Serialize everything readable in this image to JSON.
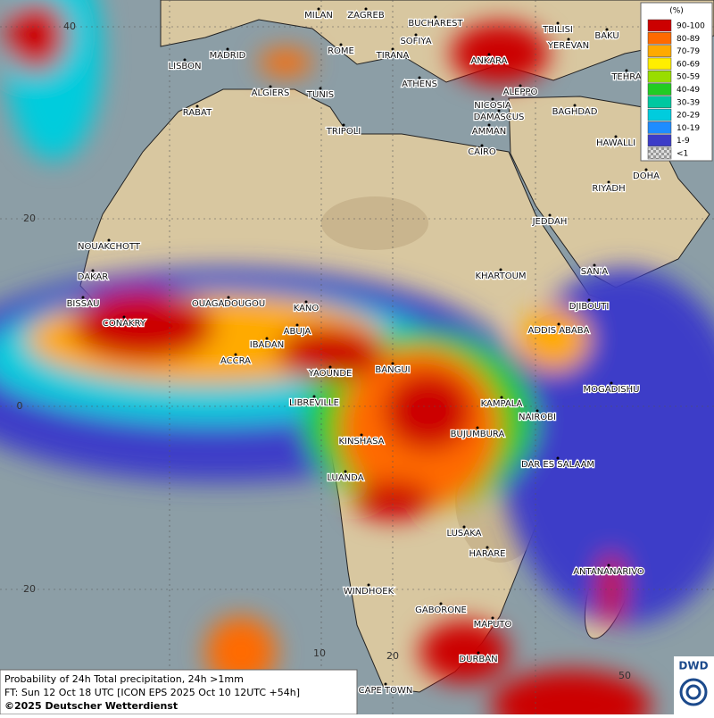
{
  "map": {
    "legend": {
      "unit": "(%)",
      "items": [
        {
          "label": "90-100",
          "color": "#cc0000"
        },
        {
          "label": "80-89",
          "color": "#ff6a00"
        },
        {
          "label": "70-79",
          "color": "#ffaa00"
        },
        {
          "label": "60-69",
          "color": "#ffee00"
        },
        {
          "label": "50-59",
          "color": "#99dd00"
        },
        {
          "label": "40-49",
          "color": "#22cc22"
        },
        {
          "label": "30-39",
          "color": "#00c8a0"
        },
        {
          "label": "20-29",
          "color": "#00ccdd"
        },
        {
          "label": "10-19",
          "color": "#1e8cff"
        },
        {
          "label": "1-9",
          "color": "#3c3cc8"
        },
        {
          "label": "<1",
          "color": "#bbbbbb"
        }
      ]
    },
    "cities": [
      "MILAN",
      "ZAGREB",
      "BUCHAREST",
      "TBILISI",
      "BAKU",
      "MADRID",
      "ROME",
      "SOFIYA",
      "YEREVAN",
      "LISBON",
      "TIRANA",
      "ANKARA",
      "TEHRA",
      "ATHENS",
      "ALGIERS",
      "TUNIS",
      "ALEPPO",
      "NICOSIA",
      "RABAT",
      "BAGHDAD",
      "TRIPOLI",
      "DAMASCUS",
      "AMMAN",
      "HAWALLI",
      "CAIRO",
      "DOHA",
      "RIYADH",
      "JEDDAH",
      "NOUAKCHOTT",
      "SAN'A",
      "KHARTOUM",
      "DAKAR",
      "BISSAU",
      "OUAGADOUGOU",
      "DJIBOUTI",
      "KANO",
      "CONAKRY",
      "ABUJA",
      "ADDIS ABABA",
      "IBADAN",
      "ACCRA",
      "YAOUNDE",
      "BANGUI",
      "MOGADISHU",
      "LIBREVILLE",
      "KAMPALA",
      "NAIROBI",
      "BUJUMBURA",
      "KINSHASA",
      "DAR ES SALAAM",
      "LUANDA",
      "LUSAKA",
      "HARARE",
      "ANTANANARIVO",
      "WINDHOEK",
      "GABORONE",
      "MAPUTO",
      "DURBAN",
      "CAPE TOWN"
    ],
    "grid_labels": [
      "40",
      "20",
      "0",
      "20",
      "10",
      "20",
      "50"
    ],
    "info": {
      "line1": "Probability of 24h Total precipitation, 24h >1mm",
      "line2": "FT: Sun 12 Oct 18 UTC [ICON EPS 2025 Oct 10 12UTC +54h]",
      "line3": "©2025 Deutscher Wetterdienst"
    },
    "logo": "DWD"
  }
}
